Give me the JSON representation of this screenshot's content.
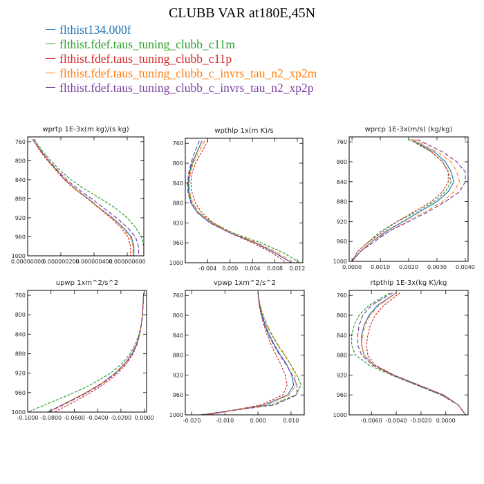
{
  "title": "CLUBB VAR at180E,45N",
  "legend": [
    {
      "name": "flthist134.000f",
      "color": "#1f77b4"
    },
    {
      "name": "flthist.fdef.taus_tuning_clubb_c11m",
      "color": "#2ca02c"
    },
    {
      "name": "flthist.fdef.taus_tuning_clubb_c11p",
      "color": "#d62728"
    },
    {
      "name": "flthist.fdef.taus_tuning_clubb_c_invrs_tau_n2_xp2m",
      "color": "#ff7f0e"
    },
    {
      "name": "flthist.fdef.taus_tuning_clubb_c_invrs_tau_n2_xp2p",
      "color": "#7b3f9e"
    }
  ],
  "chart_data": [
    {
      "type": "line",
      "title": "wprtp  1E-3x(m kg)/(s kg)",
      "xlim": [
        0.0,
        7e-07
      ],
      "ylim": [
        1000,
        750
      ],
      "xticks": [
        0.0,
        2e-07,
        4e-07,
        6e-07
      ],
      "xticklabels": [
        "0.00000000",
        "0.000000200",
        "0.000000400",
        "0.000000600"
      ],
      "yticks": [
        760,
        800,
        840,
        880,
        920,
        960,
        1000
      ],
      "y": [
        755,
        780,
        800,
        820,
        840,
        860,
        880,
        900,
        920,
        940,
        960,
        980,
        1000
      ],
      "series": [
        {
          "x": [
            3e-08,
            8e-08,
            1.25e-07,
            1.75e-07,
            2.25e-07,
            2.9e-07,
            3.65e-07,
            4.35e-07,
            5.1e-07,
            5.75e-07,
            6.25e-07,
            6.4e-07,
            6.4e-07
          ]
        },
        {
          "x": [
            4e-08,
            9e-08,
            1.4e-07,
            1.95e-07,
            2.6e-07,
            3.45e-07,
            4.4e-07,
            5.3e-07,
            6e-07,
            6.5e-07,
            6.85e-07,
            7e-07,
            7e-07
          ]
        },
        {
          "x": [
            3e-08,
            7.5e-08,
            1.2e-07,
            1.7e-07,
            2.2e-07,
            2.85e-07,
            3.6e-07,
            4.3e-07,
            5e-07,
            5.6e-07,
            6.05e-07,
            6.2e-07,
            6.2e-07
          ]
        },
        {
          "x": [
            3e-08,
            7.8e-08,
            1.23e-07,
            1.72e-07,
            2.25e-07,
            2.88e-07,
            3.62e-07,
            4.33e-07,
            5.05e-07,
            5.7e-07,
            6.18e-07,
            6.35e-07,
            6.35e-07
          ]
        },
        {
          "x": [
            3.2e-08,
            8.2e-08,
            1.28e-07,
            1.8e-07,
            2.35e-07,
            3.05e-07,
            3.85e-07,
            4.6e-07,
            5.35e-07,
            6e-07,
            6.5e-07,
            6.68e-07,
            6.7e-07
          ]
        }
      ]
    },
    {
      "type": "line",
      "title": "wpthlp  1x(m K)/s",
      "xlim": [
        -0.008,
        0.013
      ],
      "ylim": [
        1000,
        750
      ],
      "xticks": [
        -0.004,
        0.0,
        0.004,
        0.008,
        0.012
      ],
      "xticklabels": [
        "-0.004",
        "0.000",
        "0.004",
        "0.008",
        "0.012"
      ],
      "yticks": [
        760,
        800,
        840,
        880,
        920,
        960,
        1000
      ],
      "y": [
        755,
        780,
        800,
        820,
        840,
        860,
        880,
        900,
        920,
        940,
        960,
        980,
        1000
      ],
      "series": [
        {
          "x": [
            -0.005,
            -0.006,
            -0.0068,
            -0.0073,
            -0.0075,
            -0.0074,
            -0.007,
            -0.0058,
            -0.0035,
            0.0,
            0.0045,
            0.008,
            0.011
          ]
        },
        {
          "x": [
            -0.005,
            -0.006,
            -0.0067,
            -0.0072,
            -0.0074,
            -0.0073,
            -0.0068,
            -0.0055,
            -0.003,
            0.0005,
            0.0055,
            0.0095,
            0.0125
          ]
        },
        {
          "x": [
            -0.004,
            -0.0052,
            -0.0062,
            -0.0068,
            -0.007,
            -0.0068,
            -0.0062,
            -0.005,
            -0.003,
            0.0,
            0.004,
            0.0075,
            0.01
          ]
        },
        {
          "x": [
            -0.0045,
            -0.0057,
            -0.0066,
            -0.0071,
            -0.0073,
            -0.0072,
            -0.0067,
            -0.0055,
            -0.0032,
            0.0002,
            0.0048,
            0.0085,
            0.0115
          ]
        },
        {
          "x": [
            -0.0055,
            -0.0064,
            -0.007,
            -0.0074,
            -0.0076,
            -0.0075,
            -0.007,
            -0.0058,
            -0.0036,
            0.0,
            0.0045,
            0.008,
            0.011
          ]
        }
      ]
    },
    {
      "type": "line",
      "title": "wprcp  1E-3x(m/s) (kg/kg)",
      "xlim": [
        -0.0001,
        0.0041
      ],
      "ylim": [
        1000,
        750
      ],
      "xticks": [
        0.0,
        0.001,
        0.002,
        0.003,
        0.004
      ],
      "xticklabels": [
        "0.0000",
        "0.0010",
        "0.0020",
        "0.0030",
        "0.0040"
      ],
      "yticks": [
        760,
        800,
        840,
        880,
        920,
        960,
        1000
      ],
      "y": [
        755,
        780,
        800,
        820,
        840,
        860,
        880,
        900,
        920,
        940,
        960,
        980,
        1000
      ],
      "series": [
        {
          "x": [
            0.0021,
            0.0029,
            0.0033,
            0.0035,
            0.0036,
            0.0034,
            0.003,
            0.0024,
            0.0018,
            0.0012,
            0.0007,
            0.0003,
            0.0
          ]
        },
        {
          "x": [
            0.002,
            0.0028,
            0.0032,
            0.0034,
            0.0035,
            0.0033,
            0.0029,
            0.0023,
            0.0016,
            0.001,
            0.0006,
            0.0002,
            0.0
          ]
        },
        {
          "x": [
            0.0021,
            0.0028,
            0.0032,
            0.0034,
            0.0034,
            0.0032,
            0.0028,
            0.0022,
            0.0016,
            0.0011,
            0.0006,
            0.0002,
            0.0
          ]
        },
        {
          "x": [
            0.0022,
            0.003,
            0.0035,
            0.0037,
            0.0038,
            0.0036,
            0.0032,
            0.0026,
            0.0019,
            0.0013,
            0.0007,
            0.0003,
            0.0
          ]
        },
        {
          "x": [
            0.0023,
            0.0032,
            0.0037,
            0.004,
            0.004,
            0.0038,
            0.0033,
            0.0027,
            0.002,
            0.0013,
            0.0008,
            0.0003,
            0.0
          ]
        }
      ]
    },
    {
      "type": "line",
      "title": "upwp  1xm^2/s^2",
      "xlim": [
        -0.1,
        0.002
      ],
      "ylim": [
        1000,
        750
      ],
      "xticks": [
        -0.1,
        -0.08,
        -0.06,
        -0.04,
        -0.02,
        0.0
      ],
      "xticklabels": [
        "-0.1000",
        "-0.0800",
        "-0.0600",
        "-0.0400",
        "-0.0200",
        "0.0000"
      ],
      "yticks": [
        760,
        800,
        840,
        880,
        920,
        960,
        1000
      ],
      "y": [
        755,
        780,
        800,
        820,
        840,
        860,
        880,
        900,
        920,
        940,
        960,
        980,
        1000
      ],
      "series": [
        {
          "x": [
            -0.0005,
            -0.001,
            -0.0015,
            -0.0025,
            -0.004,
            -0.0065,
            -0.0105,
            -0.0165,
            -0.025,
            -0.036,
            -0.05,
            -0.066,
            -0.083
          ]
        },
        {
          "x": [
            -0.0005,
            -0.001,
            -0.0015,
            -0.0025,
            -0.0045,
            -0.0075,
            -0.012,
            -0.019,
            -0.029,
            -0.043,
            -0.06,
            -0.08,
            -0.1
          ]
        },
        {
          "x": [
            -0.0005,
            -0.001,
            -0.0015,
            -0.0025,
            -0.0038,
            -0.006,
            -0.0095,
            -0.015,
            -0.0225,
            -0.033,
            -0.046,
            -0.061,
            -0.077
          ]
        },
        {
          "x": [
            -0.0005,
            -0.001,
            -0.0015,
            -0.0025,
            -0.004,
            -0.0065,
            -0.0105,
            -0.0165,
            -0.025,
            -0.036,
            -0.05,
            -0.066,
            -0.083
          ]
        },
        {
          "x": [
            -0.0005,
            -0.001,
            -0.0015,
            -0.0025,
            -0.004,
            -0.0064,
            -0.0102,
            -0.016,
            -0.024,
            -0.035,
            -0.049,
            -0.065,
            -0.082
          ]
        }
      ]
    },
    {
      "type": "line",
      "title": "vpwp  1xm^2/s^2",
      "xlim": [
        -0.022,
        0.014
      ],
      "ylim": [
        1000,
        750
      ],
      "xticks": [
        -0.02,
        -0.01,
        0.0,
        0.01
      ],
      "xticklabels": [
        "-0.020",
        "-0.010",
        "0.000",
        "0.010"
      ],
      "yticks": [
        760,
        800,
        840,
        880,
        920,
        960,
        1000
      ],
      "y": [
        755,
        780,
        800,
        820,
        840,
        860,
        880,
        900,
        920,
        940,
        960,
        980,
        1000
      ],
      "series": [
        {
          "x": [
            0.0,
            0.0005,
            0.0012,
            0.0022,
            0.0035,
            0.005,
            0.0068,
            0.0088,
            0.0102,
            0.0108,
            0.009,
            0.002,
            -0.016
          ]
        },
        {
          "x": [
            0.0,
            0.0006,
            0.0014,
            0.0026,
            0.0042,
            0.006,
            0.008,
            0.01,
            0.0118,
            0.013,
            0.0115,
            0.004,
            -0.017
          ]
        },
        {
          "x": [
            0.0,
            0.0004,
            0.001,
            0.0018,
            0.0028,
            0.004,
            0.0055,
            0.007,
            0.0082,
            0.0088,
            0.0075,
            0.001,
            -0.015
          ]
        },
        {
          "x": [
            0.0,
            0.0007,
            0.0016,
            0.0028,
            0.0044,
            0.0062,
            0.0082,
            0.01,
            0.0112,
            0.0115,
            0.0095,
            0.0025,
            -0.0165
          ]
        },
        {
          "x": [
            0.0,
            0.0004,
            0.001,
            0.002,
            0.0032,
            0.0048,
            0.0066,
            0.0086,
            0.0104,
            0.0118,
            0.0118,
            0.005,
            -0.0175
          ]
        }
      ]
    },
    {
      "type": "line",
      "title": "rtpthlp  1E-3x(kg K)/kg",
      "xlim": [
        -0.0078,
        0.0018
      ],
      "ylim": [
        1000,
        750
      ],
      "xticks": [
        -0.006,
        -0.004,
        -0.002,
        0.0
      ],
      "xticklabels": [
        "-0.0060",
        "-0.0040",
        "-0.0020",
        "0.0000"
      ],
      "yticks": [
        760,
        800,
        840,
        880,
        920,
        960,
        1000
      ],
      "y": [
        755,
        780,
        800,
        820,
        840,
        860,
        880,
        900,
        920,
        940,
        960,
        980,
        1000
      ],
      "series": [
        {
          "x": [
            -0.004,
            -0.0055,
            -0.0062,
            -0.0066,
            -0.0068,
            -0.0068,
            -0.0066,
            -0.0058,
            -0.0042,
            -0.0022,
            -0.0002,
            0.001,
            0.0016
          ]
        },
        {
          "x": [
            -0.0045,
            -0.0062,
            -0.007,
            -0.0074,
            -0.0076,
            -0.0076,
            -0.0073,
            -0.0062,
            -0.0044,
            -0.0024,
            -0.0004,
            0.001,
            0.0016
          ]
        },
        {
          "x": [
            -0.0037,
            -0.005,
            -0.0057,
            -0.0061,
            -0.0063,
            -0.0064,
            -0.0063,
            -0.0057,
            -0.0042,
            -0.0022,
            -0.0002,
            0.001,
            0.0016
          ]
        },
        {
          "x": [
            -0.004,
            -0.0054,
            -0.0061,
            -0.0065,
            -0.0067,
            -0.0068,
            -0.0066,
            -0.0058,
            -0.0043,
            -0.0023,
            -0.0003,
            0.001,
            0.0016
          ]
        },
        {
          "x": [
            -0.0043,
            -0.006,
            -0.0067,
            -0.007,
            -0.0071,
            -0.0071,
            -0.0068,
            -0.0059,
            -0.0043,
            -0.0023,
            -0.0003,
            0.001,
            0.0016
          ]
        }
      ]
    }
  ]
}
